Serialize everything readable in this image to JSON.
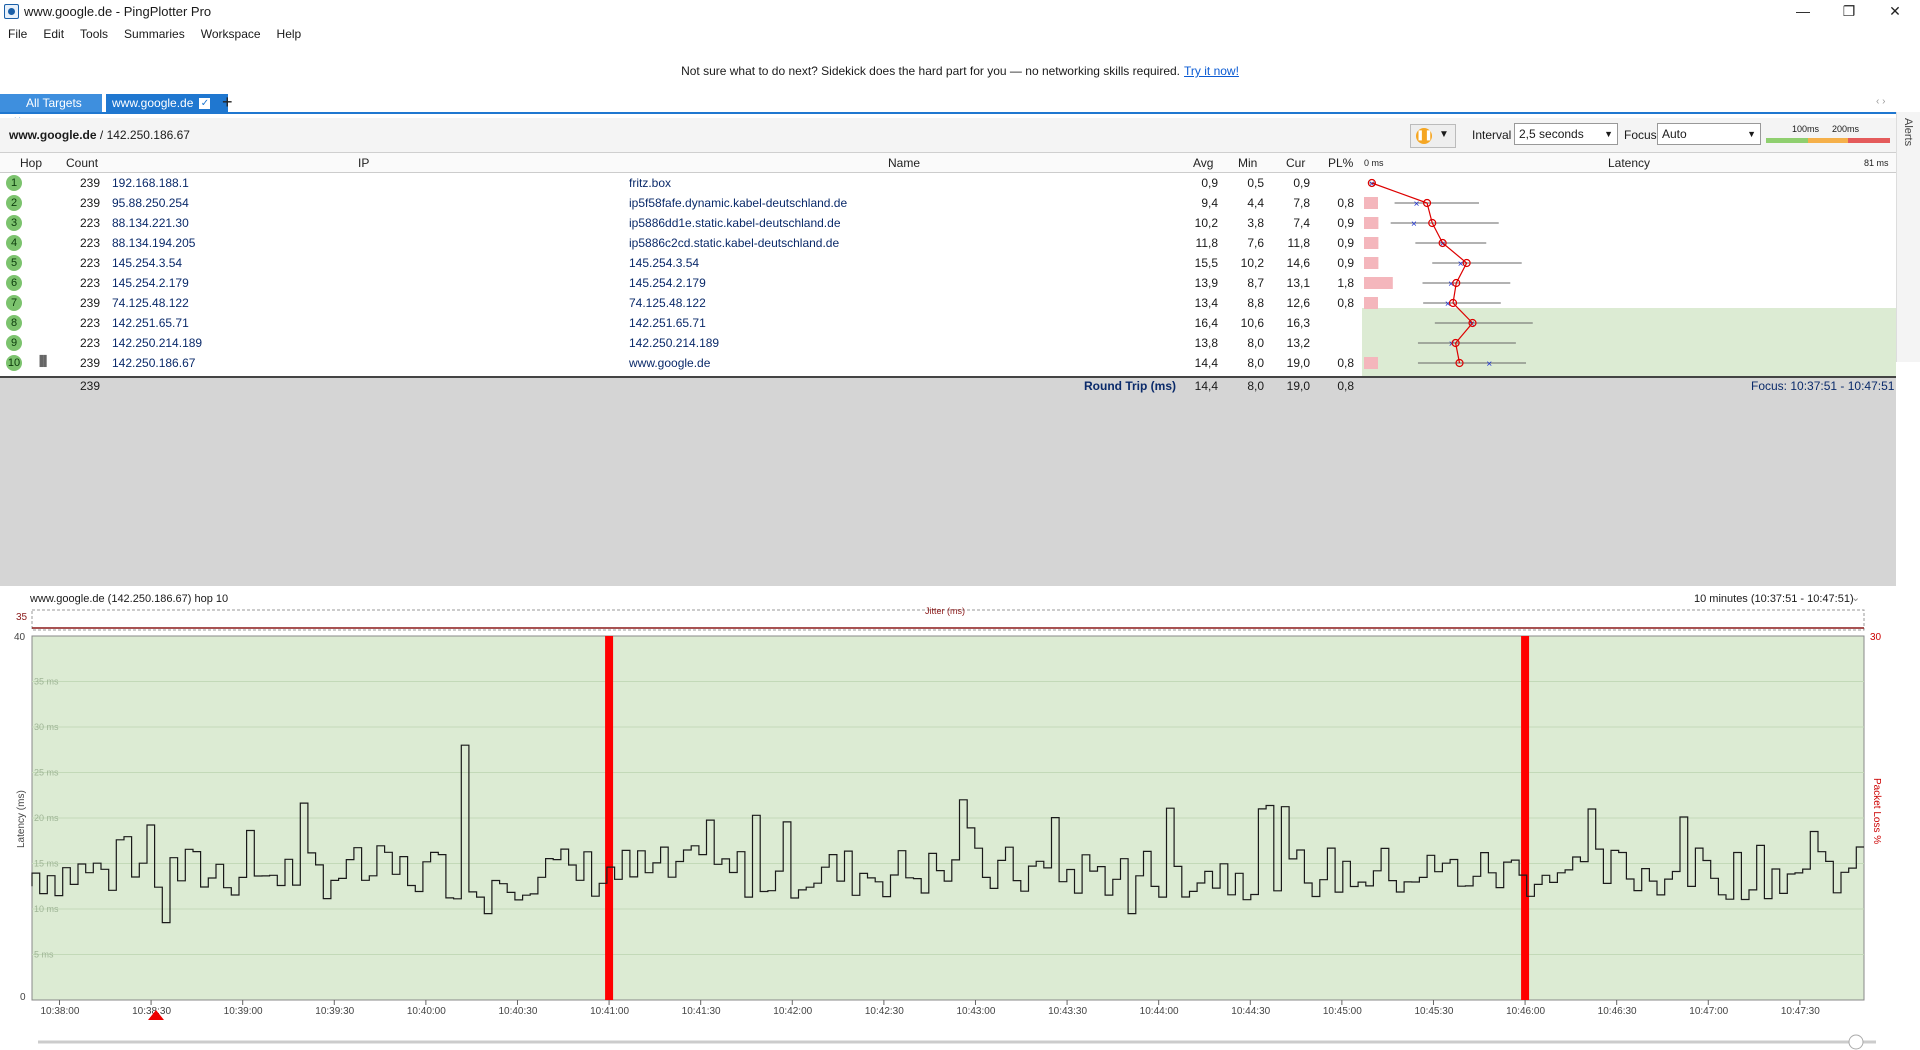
{
  "window": {
    "title": "www.google.de - PingPlotter Pro"
  },
  "menu": [
    "File",
    "Edit",
    "Tools",
    "Summaries",
    "Workspace",
    "Help"
  ],
  "promo": {
    "text": "Not sure what to do next? Sidekick does the hard part for you — no networking skills required.",
    "link": "Try it now!"
  },
  "tabs": [
    {
      "label": "All Targets"
    },
    {
      "label": "www.google.de"
    }
  ],
  "toolbar": {
    "target": "www.google.de",
    "ip": " / 142.250.186.67",
    "interval_label": "Interval",
    "interval_value": "2,5 seconds",
    "focus_label": "Focus",
    "focus_value": "Auto",
    "scale_100": "100ms",
    "scale_200": "200ms"
  },
  "alerts_label": "Alerts",
  "table": {
    "headers": {
      "hop": "Hop",
      "count": "Count",
      "ip": "IP",
      "name": "Name",
      "avg": "Avg",
      "min": "Min",
      "cur": "Cur",
      "pl": "PL%",
      "latency": "Latency",
      "lat_min": "0 ms",
      "lat_max": "81 ms"
    },
    "rows": [
      {
        "hop": "1",
        "count": "239",
        "ip": "192.168.188.1",
        "name": "fritz.box",
        "avg": "0,9",
        "min": "0,5",
        "cur": "0,9",
        "pl": ""
      },
      {
        "hop": "2",
        "count": "239",
        "ip": "95.88.250.254",
        "name": "ip5f58fafe.dynamic.kabel-deutschland.de",
        "avg": "9,4",
        "min": "4,4",
        "cur": "7,8",
        "pl": "0,8"
      },
      {
        "hop": "3",
        "count": "223",
        "ip": "88.134.221.30",
        "name": "ip5886dd1e.static.kabel-deutschland.de",
        "avg": "10,2",
        "min": "3,8",
        "cur": "7,4",
        "pl": "0,9"
      },
      {
        "hop": "4",
        "count": "223",
        "ip": "88.134.194.205",
        "name": "ip5886c2cd.static.kabel-deutschland.de",
        "avg": "11,8",
        "min": "7,6",
        "cur": "11,8",
        "pl": "0,9"
      },
      {
        "hop": "5",
        "count": "223",
        "ip": "145.254.3.54",
        "name": "145.254.3.54",
        "avg": "15,5",
        "min": "10,2",
        "cur": "14,6",
        "pl": "0,9"
      },
      {
        "hop": "6",
        "count": "223",
        "ip": "145.254.2.179",
        "name": "145.254.2.179",
        "avg": "13,9",
        "min": "8,7",
        "cur": "13,1",
        "pl": "1,8"
      },
      {
        "hop": "7",
        "count": "239",
        "ip": "74.125.48.122",
        "name": "74.125.48.122",
        "avg": "13,4",
        "min": "8,8",
        "cur": "12,6",
        "pl": "0,8"
      },
      {
        "hop": "8",
        "count": "223",
        "ip": "142.251.65.71",
        "name": "142.251.65.71",
        "avg": "16,4",
        "min": "10,6",
        "cur": "16,3",
        "pl": ""
      },
      {
        "hop": "9",
        "count": "223",
        "ip": "142.250.214.189",
        "name": "142.250.214.189",
        "avg": "13,8",
        "min": "8,0",
        "cur": "13,2",
        "pl": ""
      },
      {
        "hop": "10",
        "count": "239",
        "ip": "142.250.186.67",
        "name": "www.google.de",
        "avg": "14,4",
        "min": "8,0",
        "cur": "19,0",
        "pl": "0,8"
      }
    ],
    "summary": {
      "count": "239",
      "label": "Round Trip (ms)",
      "avg": "14,4",
      "min": "8,0",
      "cur": "19,0",
      "pl": "0,8",
      "focus": "Focus: 10:37:51 - 10:47:51"
    }
  },
  "graph": {
    "header_left": "www.google.de (142.250.186.67) hop 10",
    "header_right": "10 minutes (10:37:51 - 10:47:51)",
    "jitter_label": "Jitter (ms)",
    "jitter_max": "35",
    "ylabel": "Latency (ms)",
    "ylabel_right": "Packet Loss %",
    "y_top": "40",
    "y_zero": "0",
    "right_top": "30",
    "y_ticks": [
      "35 ms",
      "30 ms",
      "25 ms",
      "20 ms",
      "15 ms",
      "10 ms",
      "5 ms"
    ],
    "x_ticks": [
      "10:38:00",
      "10:38:30",
      "10:39:00",
      "10:39:30",
      "10:40:00",
      "10:40:30",
      "10:41:00",
      "10:41:30",
      "10:42:00",
      "10:42:30",
      "10:43:00",
      "10:43:30",
      "10:44:00",
      "10:44:30",
      "10:45:00",
      "10:45:30",
      "10:46:00",
      "10:46:30",
      "10:47:00",
      "10:47:30"
    ]
  },
  "colors": {
    "accent": "#1f77d0",
    "graph_bg": "#dcebd3",
    "loss": "#ff0000",
    "latency_line": "#1a1a1a"
  }
}
